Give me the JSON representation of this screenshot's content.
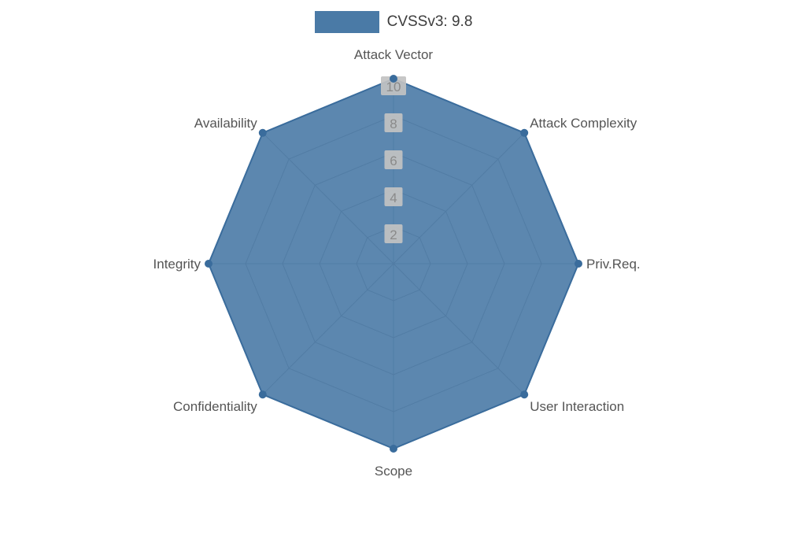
{
  "legend": {
    "label": "CVSSv3: 9.8"
  },
  "chart_data": {
    "type": "radar",
    "title": "CVSSv3: 9.8",
    "categories": [
      "Attack Vector",
      "Attack Complexity",
      "Priv.Req.",
      "User Interaction",
      "Scope",
      "Confidentiality",
      "Integrity",
      "Availability"
    ],
    "series": [
      {
        "name": "CVSSv3: 9.8",
        "values": [
          10,
          10,
          10,
          10,
          10,
          10,
          10,
          10
        ]
      }
    ],
    "ticks": [
      2,
      4,
      6,
      8,
      10
    ],
    "rlim": [
      0,
      10
    ],
    "grid": true,
    "legend_position": "top-center",
    "colors": {
      "fill": "#4a7aa6",
      "stroke": "#3a6c9c",
      "marker": "#3a6c9c",
      "grid": "#8c8c8c",
      "axis_label": "#555555",
      "tick_text": "#8a8a8a",
      "tick_box": "#c2c2c2",
      "legend_text": "#3c3c3c",
      "background": "#ffffff"
    }
  }
}
